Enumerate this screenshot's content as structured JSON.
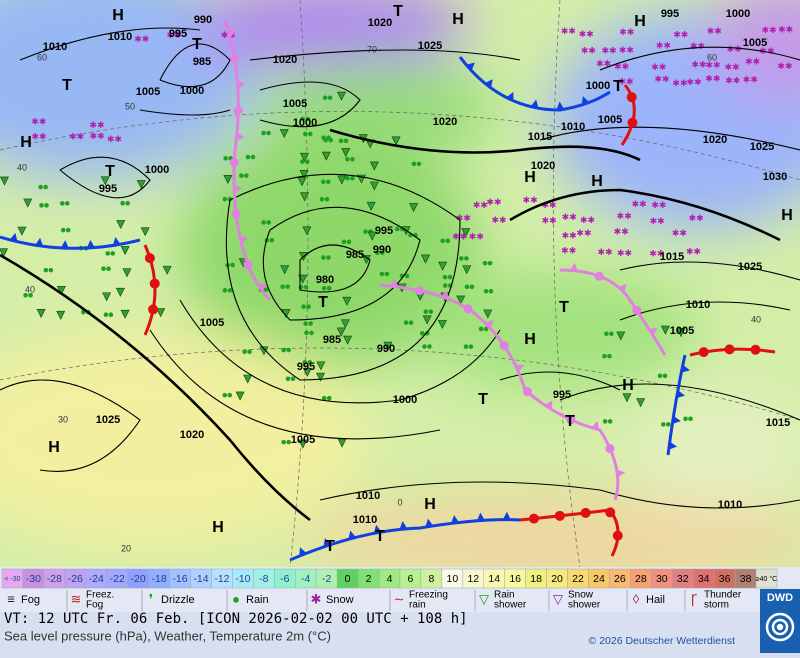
{
  "map": {
    "pressure_labels": [
      "1010",
      "1010",
      "990",
      "995",
      "985",
      "1000",
      "1005",
      "1020",
      "1025",
      "1020",
      "1005",
      "1000",
      "1020",
      "995",
      "1000",
      "1005",
      "1000",
      "1010",
      "1005",
      "1015",
      "1020",
      "1020",
      "1025",
      "1030",
      "1015",
      "1025",
      "1010",
      "1005",
      "995",
      "985",
      "990",
      "980",
      "985",
      "990",
      "995",
      "1005",
      "1000",
      "995",
      "1015",
      "1025",
      "1020",
      "1005",
      "1010",
      "1010",
      "1010",
      "995",
      "1000"
    ],
    "temperature_labels": [
      "60",
      "50",
      "40",
      "40",
      "30",
      "20",
      "70",
      "60",
      "40",
      "0"
    ],
    "centers": [
      "H",
      "H",
      "T",
      "T",
      "T",
      "H",
      "T",
      "H",
      "H",
      "H",
      "H",
      "H",
      "H",
      "H",
      "H",
      "H",
      "T",
      "T",
      "T",
      "T",
      "T",
      "T",
      "T"
    ]
  },
  "legend": {
    "temperature_scale": [
      "< -30",
      "-30",
      "-28",
      "-26",
      "-24",
      "-22",
      "-20",
      "-18",
      "-16",
      "-14",
      "-12",
      "-10",
      "-8",
      "-6",
      "-4",
      "-2",
      "0",
      "2",
      "4",
      "6",
      "8",
      "10",
      "12",
      "14",
      "16",
      "18",
      "20",
      "22",
      "24",
      "26",
      "28",
      "30",
      "32",
      "34",
      "36",
      "38",
      "≥40 °C"
    ],
    "colors": [
      "#e8a8f0",
      "#c890e0",
      "#d0a0e8",
      "#c0a0f0",
      "#b0a8f8",
      "#a0a8ff",
      "#8fa0ff",
      "#90b0ff",
      "#a0c0ff",
      "#b0d0ff",
      "#b8e0ff",
      "#a8e8f8",
      "#a0f0e8",
      "#90f0d0",
      "#a0f0c0",
      "#b0f0b0",
      "#60d060",
      "#80e070",
      "#a0e880",
      "#b8f090",
      "#d0f0a0",
      "#fafae8",
      "#f8f8d0",
      "#f8f8b0",
      "#f8f8a0",
      "#f0f080",
      "#f8e880",
      "#f8d870",
      "#f8c868",
      "#f8b870",
      "#f8a070",
      "#f09080",
      "#e08080",
      "#e07070",
      "#d07060",
      "#b08070",
      "#e0e0d0"
    ],
    "weather": [
      [
        "Fog"
      ],
      [
        "Freez.",
        "Fog"
      ],
      [
        "Drizzle"
      ],
      [
        "Rain"
      ],
      [
        "Snow"
      ],
      [
        "Freezing",
        "rain"
      ],
      [
        "Rain",
        "shower"
      ],
      [
        "Snow",
        "shower"
      ],
      [
        "Hail"
      ],
      [
        "Thunder",
        "storm"
      ]
    ]
  },
  "footer": {
    "valid_time": "VT: 12 UTC Fr.  06 Feb. [ICON 2026-02-02  00 UTC + 108 h]",
    "product": "Sea level pressure (hPa), Weather, Temperature 2m (°C)",
    "copyright": "© 2026 Deutscher Wetterdienst",
    "logo": "DWD"
  }
}
